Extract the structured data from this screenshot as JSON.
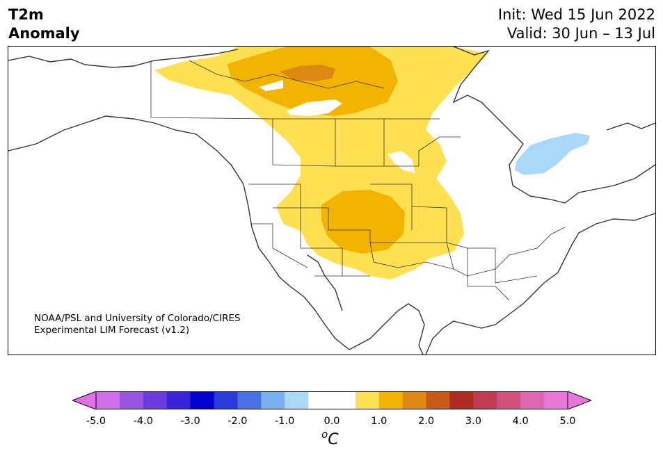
{
  "title": {
    "left_line1": "T2m",
    "left_line2": "Anomaly",
    "init": "Init: Wed 15 Jun 2022",
    "valid": "Valid: 30 Jun – 13 Jul"
  },
  "credit": {
    "line1": "NOAA/PSL and University of Colorado/CIRES",
    "line2": "Experimental LIM Forecast (v1.2)"
  },
  "colorbar": {
    "unit_base": "C",
    "unit_sup": "o",
    "ticks": [
      "-5.0",
      "-4.0",
      "-3.0",
      "-2.0",
      "-1.0",
      "0.0",
      "1.0",
      "2.0",
      "3.0",
      "4.0",
      "5.0"
    ],
    "under_color": "#e070e8",
    "over_color": "#e878d8",
    "colors": [
      "#d070e8",
      "#9a55e0",
      "#6a3ce0",
      "#3a22d8",
      "#0000d0",
      "#2a3ad8",
      "#4a70e8",
      "#78b0f0",
      "#aad8f8",
      "#ffffff",
      "#ffffff",
      "#ffe050",
      "#f2b400",
      "#dc8812",
      "#c85a18",
      "#b02a24",
      "#c03a50",
      "#d05080",
      "#de68b0",
      "#e878d8"
    ]
  }
}
